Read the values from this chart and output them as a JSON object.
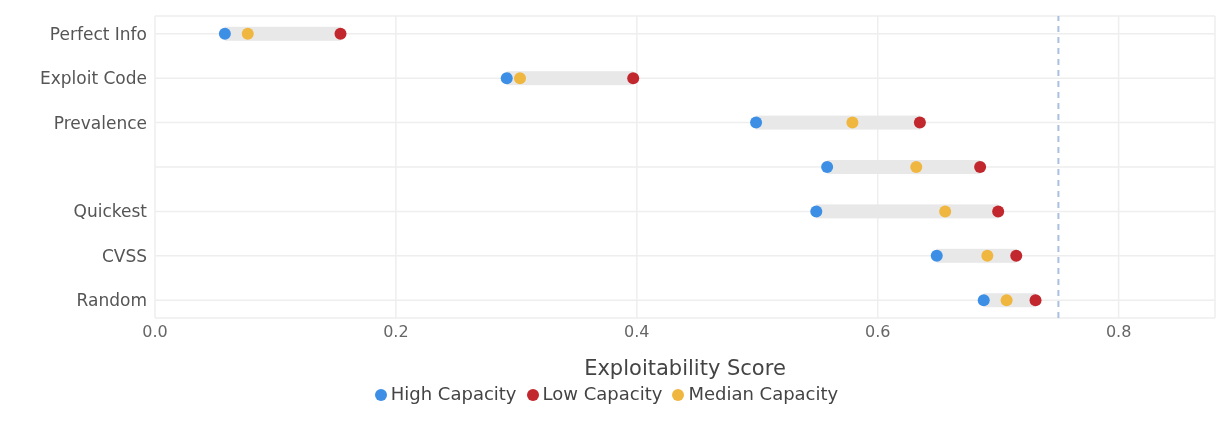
{
  "chart_data": {
    "type": "scatter",
    "orientation": "horizontal",
    "xlabel": "Exploitability Score",
    "categories": [
      "Perfect Info",
      "Exploit Code",
      "Prevalence",
      null,
      "Quickest",
      "CVSS",
      "Random"
    ],
    "series": [
      {
        "type": "bar",
        "color": "#e8e8e8",
        "base": [
          0.058,
          0.292,
          0.499,
          0.558,
          0.549,
          0.649,
          0.688
        ],
        "values": [
          0.096,
          0.105,
          0.136,
          0.127,
          0.151,
          0.066,
          0.043
        ]
      },
      {
        "name": "Low Capacity",
        "color": "#c1272d",
        "values": [
          0.154,
          0.397,
          0.635,
          0.685,
          0.7,
          0.715,
          0.731
        ]
      },
      {
        "name": "Median Capacity",
        "color": "#f0b740",
        "values": [
          0.077,
          0.303,
          0.579,
          0.632,
          0.656,
          0.691,
          0.707
        ]
      },
      {
        "name": "High Capacity",
        "color": "#3d8fe6",
        "values": [
          0.058,
          0.292,
          0.499,
          0.558,
          0.549,
          0.649,
          0.688
        ]
      }
    ],
    "xlim": [
      0,
      0.88
    ],
    "xticks": [
      {
        "value": 0,
        "label": "0.0"
      },
      0.2,
      0.4,
      0.6,
      0.8
    ],
    "ref_lines": [
      {
        "axis": "x",
        "value": 0.75,
        "color": "#a9c0e0",
        "line_style": "dashed"
      }
    ],
    "grid": true,
    "legend": "bottom",
    "marker": "circle"
  }
}
